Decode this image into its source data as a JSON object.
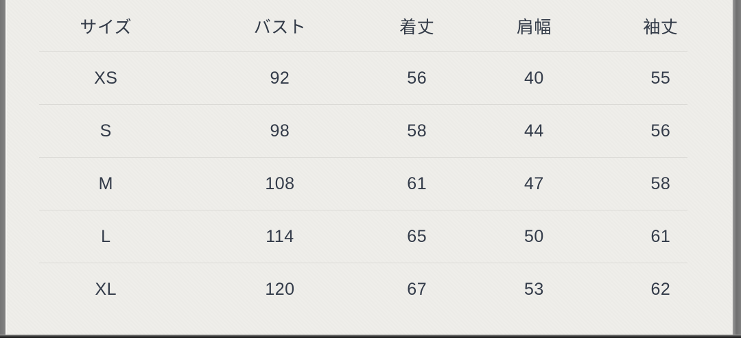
{
  "size_chart": {
    "columns": [
      "サイズ",
      "バスト",
      "着丈",
      "肩幅",
      "袖丈"
    ],
    "rows": [
      [
        "XS",
        "92",
        "56",
        "40",
        "55"
      ],
      [
        "S",
        "98",
        "58",
        "44",
        "56"
      ],
      [
        "M",
        "108",
        "61",
        "47",
        "58"
      ],
      [
        "L",
        "114",
        "65",
        "50",
        "61"
      ],
      [
        "XL",
        "120",
        "67",
        "53",
        "62"
      ]
    ]
  },
  "colors": {
    "background": "#efeeea",
    "text": "#333b49",
    "divider": "#dbdad6",
    "side_bezel": "#7d7d7d",
    "bottom_bar": "#161616"
  },
  "chart_data": {
    "type": "table",
    "title": "",
    "columns": [
      "サイズ",
      "バスト",
      "着丈",
      "肩幅",
      "袖丈"
    ],
    "rows": [
      [
        "XS",
        92,
        56,
        40,
        55
      ],
      [
        "S",
        98,
        58,
        44,
        56
      ],
      [
        "M",
        108,
        61,
        47,
        58
      ],
      [
        "L",
        114,
        65,
        50,
        61
      ],
      [
        "XL",
        120,
        67,
        53,
        62
      ]
    ]
  }
}
